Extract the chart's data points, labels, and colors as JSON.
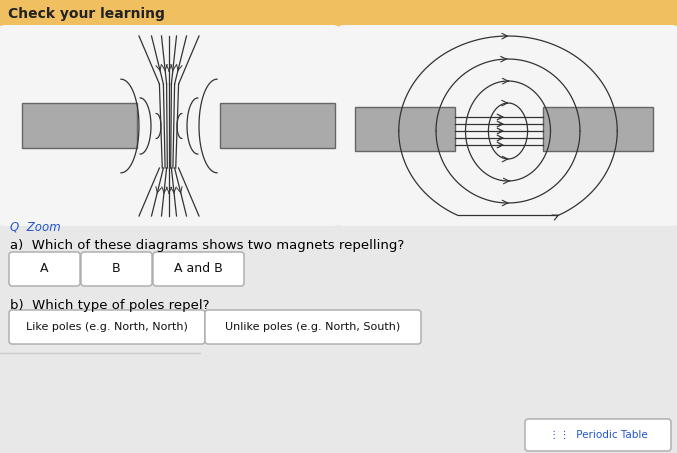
{
  "title": "Check your learning",
  "title_bg_color": "#f0c060",
  "page_bg_color": "#e8e8e8",
  "card_bg_color": "#f5f5f5",
  "header_text_color": "#222222",
  "zoom_text": "Q  Zoom",
  "zoom_text_color": "#2255cc",
  "question_a_text": "a)  Which of these diagrams shows two magnets repelling?",
  "question_b_text": "b)  Which type of poles repel?",
  "buttons_a": [
    "A",
    "B",
    "A and B"
  ],
  "buttons_b": [
    "Like poles (e.g. North, North)",
    "Unlike poles (e.g. North, South)"
  ],
  "button_border_color": "#aaaaaa",
  "button_text_color": "#111111",
  "button_bg": "#ffffff",
  "magnet_color": "#aaaaaa",
  "magnet_edge_color": "#666666",
  "field_line_color": "#333333",
  "periodic_table_text": "Periodic Table",
  "periodic_table_color": "#2255cc"
}
